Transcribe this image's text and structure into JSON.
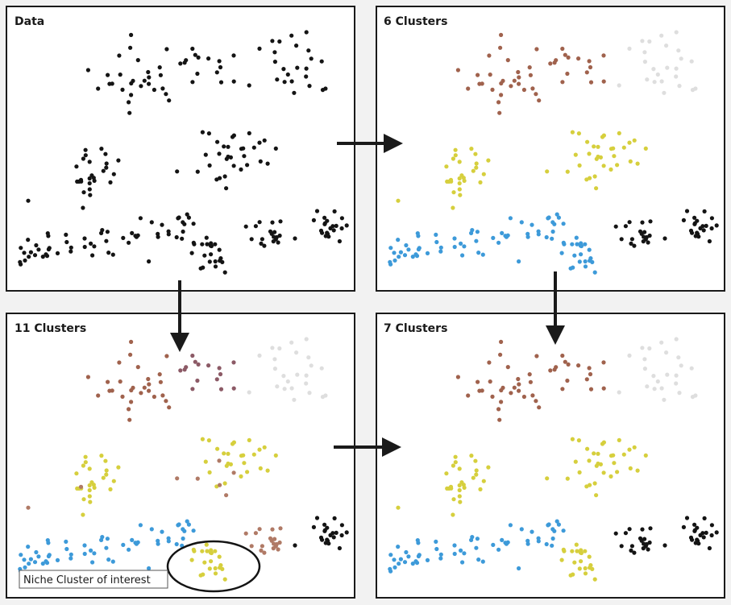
{
  "panels": [
    {
      "id": "data",
      "title": "Data"
    },
    {
      "id": "six",
      "title": "6 Clusters"
    },
    {
      "id": "eleven",
      "title": "11 Clusters"
    },
    {
      "id": "seven",
      "title": "7 Clusters"
    }
  ],
  "callout": {
    "label": "Niche Cluster of interest"
  },
  "colors": {
    "background": "#f2f2f2",
    "panel_fill": "#ffffff",
    "panel_border": "#1a1a1a",
    "brown": "#a0624d",
    "brown_light": "#b07a66",
    "mauve": "#8c5a66",
    "yellow": "#d6cf3d",
    "blue": "#3d9ad9",
    "black": "#141414",
    "ghost": "#dedede"
  }
}
